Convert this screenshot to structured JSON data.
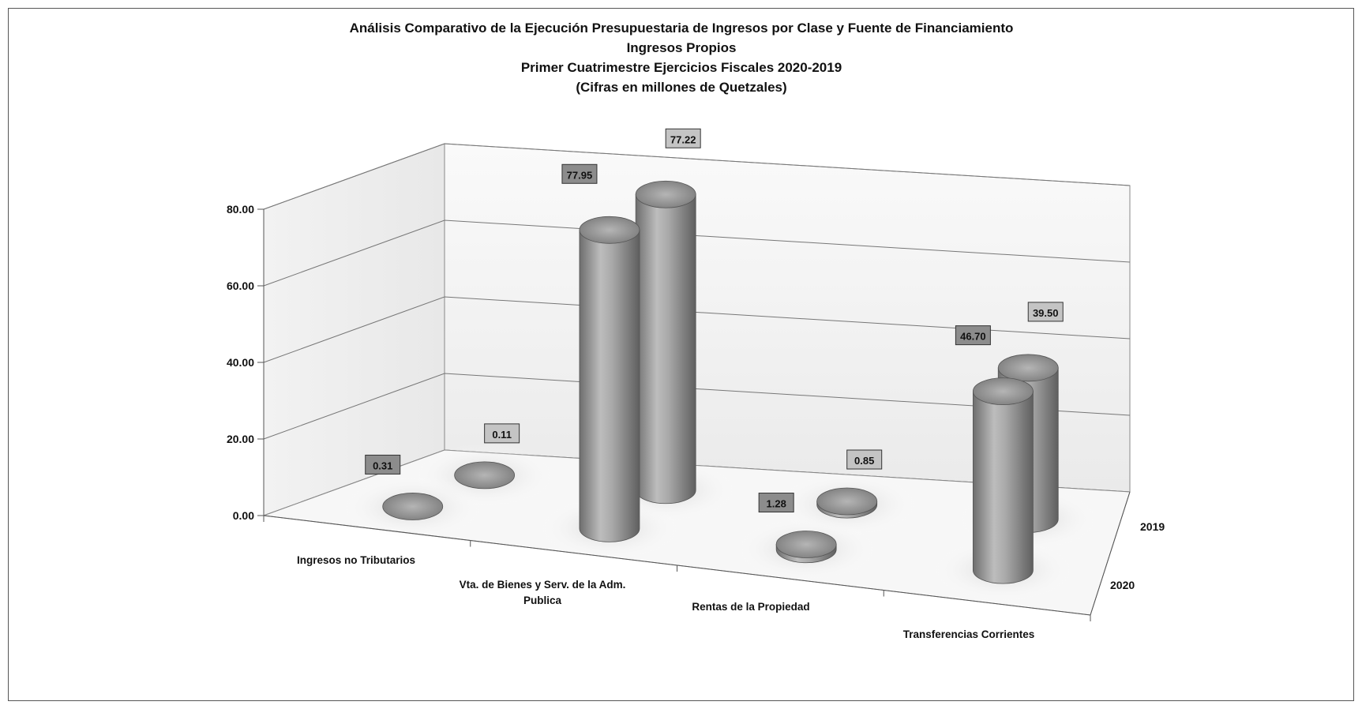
{
  "chart_data": {
    "type": "bar",
    "subtype": "3d-cylinder",
    "title_lines": [
      "Análisis Comparativo de la Ejecución Presupuestaria de Ingresos por Clase y Fuente de Financiamiento",
      "Ingresos Propios",
      "Primer Cuatrimestre Ejercicios Fiscales 2020-2019",
      "(Cifras en millones de Quetzales)"
    ],
    "categories": [
      [
        "Ingresos no Tributarios"
      ],
      [
        "Vta. de Bienes y Serv. de la Adm.",
        "Publica"
      ],
      [
        "Rentas de la Propiedad"
      ],
      [
        "Transferencias Corrientes"
      ]
    ],
    "series": [
      {
        "name": "2020",
        "values": [
          0.31,
          77.95,
          1.28,
          46.7
        ],
        "labels": [
          "0.31",
          "77.95",
          "1.28",
          "46.70"
        ]
      },
      {
        "name": "2019",
        "values": [
          0.11,
          77.22,
          0.85,
          39.5
        ],
        "labels": [
          "0.11",
          "77.22",
          "0.85",
          "39.50"
        ]
      }
    ],
    "yticks": [
      "0.00",
      "20.00",
      "40.00",
      "60.00",
      "80.00"
    ],
    "ylim": [
      0,
      80
    ],
    "grid": true,
    "colors": {
      "cylinder": "#9a9a9a",
      "label_box_2020": "#8c8c8c",
      "label_box_2019": "#c4c4c4"
    }
  }
}
